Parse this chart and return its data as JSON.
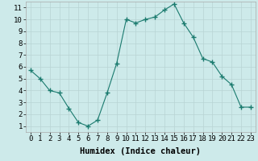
{
  "x": [
    0,
    1,
    2,
    3,
    4,
    5,
    6,
    7,
    8,
    9,
    10,
    11,
    12,
    13,
    14,
    15,
    16,
    17,
    18,
    19,
    20,
    21,
    22,
    23
  ],
  "y": [
    5.7,
    5.0,
    4.0,
    3.8,
    2.5,
    1.3,
    1.0,
    1.5,
    3.8,
    6.3,
    10.0,
    9.7,
    10.0,
    10.2,
    10.8,
    11.3,
    9.7,
    8.5,
    6.7,
    6.4,
    5.2,
    4.5,
    2.6,
    2.6
  ],
  "line_color": "#1a7a6e",
  "marker": "+",
  "marker_size": 4,
  "bg_color": "#cdeaea",
  "grid_color": "#b8d4d4",
  "xlabel": "Humidex (Indice chaleur)",
  "xlim": [
    -0.5,
    23.5
  ],
  "ylim": [
    0.5,
    11.5
  ],
  "xticks": [
    0,
    1,
    2,
    3,
    4,
    5,
    6,
    7,
    8,
    9,
    10,
    11,
    12,
    13,
    14,
    15,
    16,
    17,
    18,
    19,
    20,
    21,
    22,
    23
  ],
  "yticks": [
    1,
    2,
    3,
    4,
    5,
    6,
    7,
    8,
    9,
    10,
    11
  ],
  "font_size": 6.5,
  "label_font_size": 7.5,
  "label_fontweight": "bold"
}
